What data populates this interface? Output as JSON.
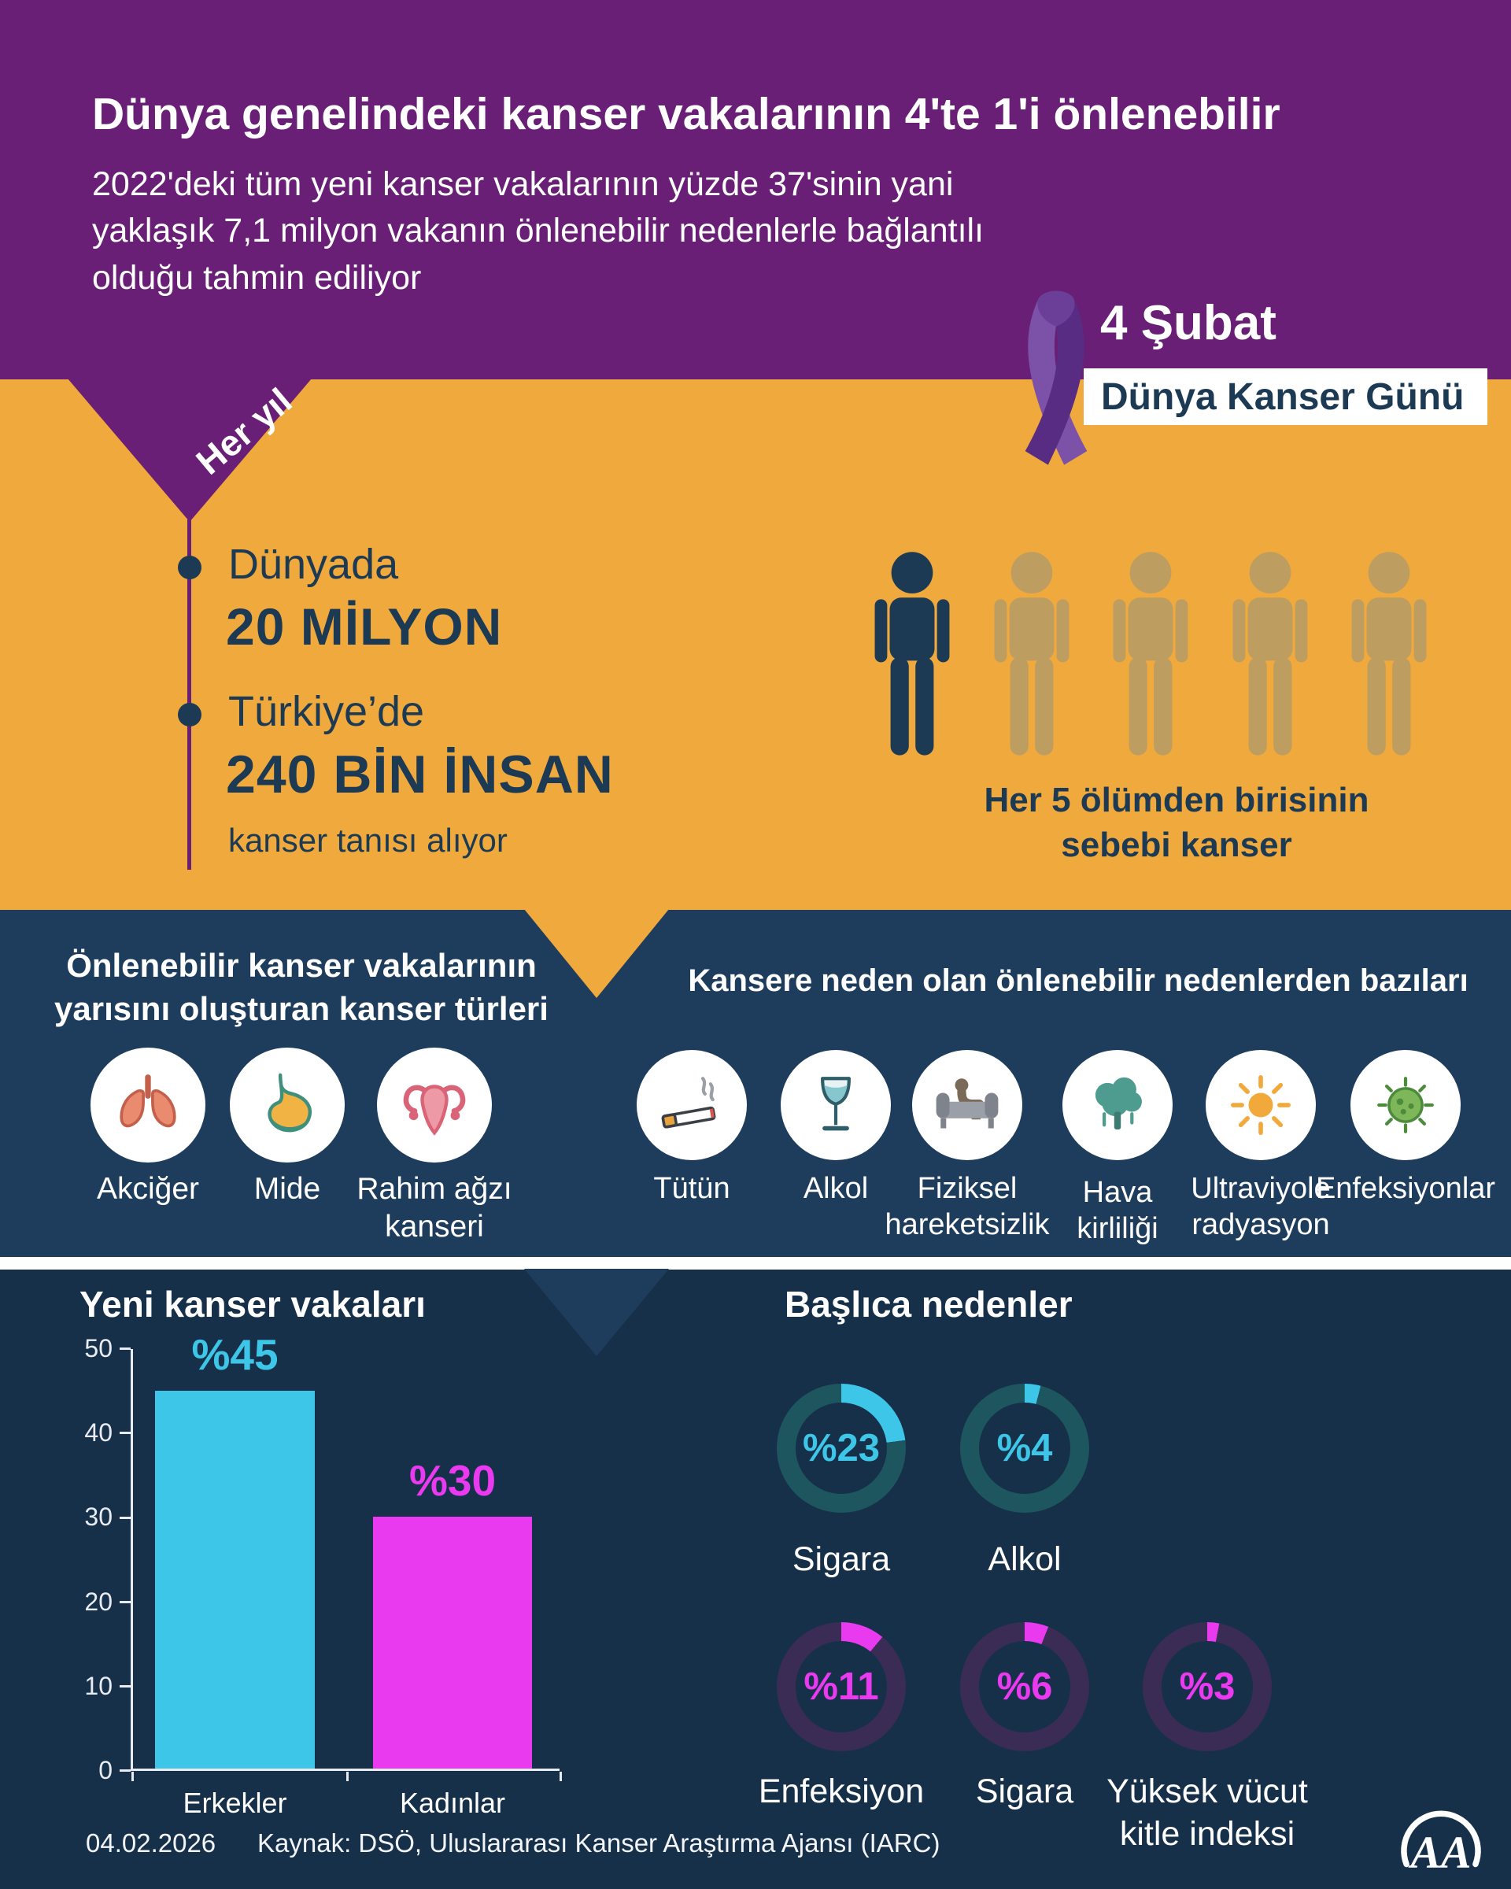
{
  "colors": {
    "purple": "#6A1F76",
    "orange": "#F0A93C",
    "navy": "#1E3D5C",
    "navy_dark": "#16304A",
    "cyan": "#3EC6E8",
    "magenta": "#E93AF0",
    "text_navy": "#1C3A54"
  },
  "header": {
    "title": "Dünya genelindeki kanser vakalarının 4'te 1'i önlenebilir",
    "subtitle_lines": [
      "2022'deki tüm yeni kanser vakalarının yüzde 37'sinin yani",
      "yaklaşık 7,1 milyon vakanın önlenebilir nedenlerle bağlantılı",
      "olduğu tahmin ediliyor"
    ]
  },
  "world_cancer_day": {
    "date": "4 Şubat",
    "label": "Dünya Kanser Günü"
  },
  "yearly": {
    "rotated_label": "Her yıl",
    "entries": [
      {
        "place": "Dünyada",
        "figure": "20 MİLYON"
      },
      {
        "place": "Türkiye’de",
        "figure": "240 BİN İNSAN"
      }
    ],
    "suffix": "kanser tanısı alıyor"
  },
  "deaths": {
    "caption_lines": [
      "Her 5 ölümden birisinin",
      "sebebi kanser"
    ],
    "highlight_color": "#1C3A54",
    "muted_color": "#BE9D61"
  },
  "cancer_types": {
    "heading_lines": [
      "Önlenebilir kanser vakalarının",
      "yarısını oluşturan kanser türleri"
    ],
    "items": [
      {
        "label": "Akciğer",
        "icon": "lungs-icon"
      },
      {
        "label": "Mide",
        "icon": "stomach-icon"
      },
      {
        "label": "Rahim ağzı kanseri",
        "icon": "uterus-icon"
      }
    ]
  },
  "causes": {
    "heading": "Kansere neden olan önlenebilir nedenlerden bazıları",
    "items": [
      {
        "label": "Tütün",
        "icon": "cigarette-icon"
      },
      {
        "label": "Alkol",
        "icon": "wine-glass-icon"
      },
      {
        "label": "Fiziksel hareketsizlik",
        "icon": "sedentary-icon"
      },
      {
        "label": "Hava kirliliği",
        "icon": "air-pollution-icon"
      },
      {
        "label": "Ultraviyole radyasyon",
        "icon": "sun-icon"
      },
      {
        "label": "Enfeksiyonlar",
        "icon": "microbe-icon"
      }
    ]
  },
  "chart_data": [
    {
      "type": "bar",
      "title": "Yeni kanser vakaları",
      "ylim": [
        0,
        50
      ],
      "yticks": [
        "50",
        "40",
        "30",
        "20",
        "10",
        "0"
      ],
      "bars": [
        {
          "category": "Erkekler",
          "value": 45,
          "text": "%45",
          "color": "#3EC6E8"
        },
        {
          "category": "Kadınlar",
          "value": 30,
          "text": "%30",
          "color": "#E93AF0"
        }
      ]
    },
    {
      "type": "donut",
      "title": "Başlıca nedenler",
      "items": [
        {
          "value": 23,
          "text": "%23",
          "label": "Sigara",
          "accent": "#3EC6E8",
          "base": "#1D565E"
        },
        {
          "value": 4,
          "text": "%4",
          "label": "Alkol",
          "accent": "#3EC6E8",
          "base": "#1D565E"
        },
        {
          "value": 11,
          "text": "%11",
          "label": "Enfeksiyon",
          "accent": "#E93AF0",
          "base": "#3A2C55"
        },
        {
          "value": 6,
          "text": "%6",
          "label": "Sigara",
          "accent": "#E93AF0",
          "base": "#3A2C55"
        },
        {
          "value": 3,
          "text": "%3",
          "label": "Yüksek vücut kitle indeksi",
          "accent": "#E93AF0",
          "base": "#3A2C55"
        }
      ]
    }
  ],
  "footer": {
    "date": "04.02.2026",
    "source": "Kaynak: DSÖ, Uluslararası Kanser Araştırma Ajansı (IARC)",
    "agency": "AA"
  }
}
